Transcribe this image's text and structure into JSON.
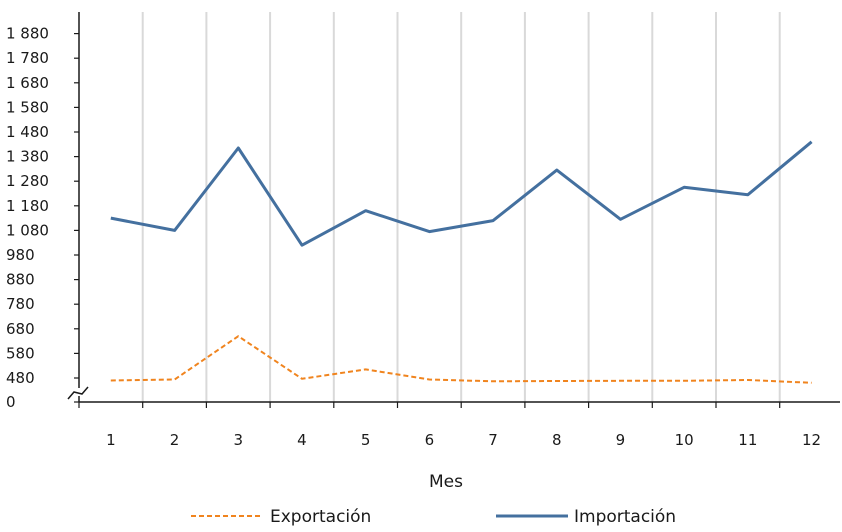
{
  "chart_data": {
    "type": "line",
    "title": "",
    "xlabel": "Mes",
    "ylabel": "",
    "categories": [
      "1",
      "2",
      "3",
      "4",
      "5",
      "6",
      "7",
      "8",
      "9",
      "10",
      "11",
      "12"
    ],
    "y_ticks": [
      0,
      480,
      580,
      680,
      780,
      880,
      980,
      1080,
      1180,
      1280,
      1380,
      1480,
      1580,
      1680,
      1780,
      1880
    ],
    "y_tick_labels": [
      "0",
      "480",
      "580",
      "680",
      "780",
      "880",
      "980",
      "1 080",
      "1 180",
      "1 280",
      "1 380",
      "1 480",
      "1 580",
      "1 680",
      "1 780",
      "1 880"
    ],
    "y_axis_break": true,
    "ylim": [
      0,
      1930
    ],
    "grid": "vertical",
    "legend_position": "bottom",
    "series": [
      {
        "name": "Exportación",
        "color": "#f0841e",
        "style": "dashed",
        "values": [
          430,
          450,
          650,
          465,
          515,
          450,
          415,
          420,
          425,
          425,
          440,
          385
        ]
      },
      {
        "name": "Importación",
        "color": "#44709f",
        "style": "solid",
        "values": [
          1130,
          1080,
          1415,
          1020,
          1160,
          1075,
          1120,
          1325,
          1125,
          1255,
          1225,
          1440
        ]
      }
    ]
  }
}
